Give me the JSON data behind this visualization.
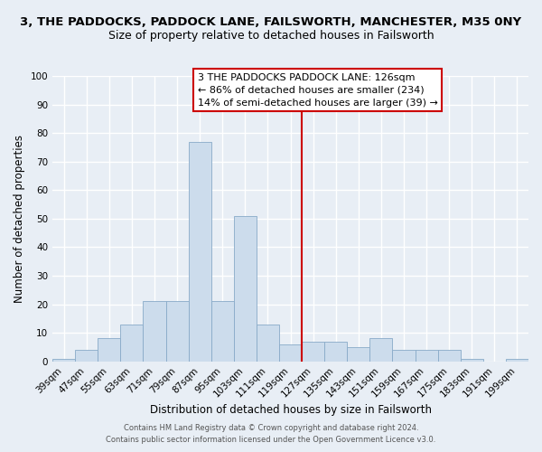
{
  "title_line1": "3, THE PADDOCKS, PADDOCK LANE, FAILSWORTH, MANCHESTER, M35 0NY",
  "title_line2": "Size of property relative to detached houses in Failsworth",
  "xlabel": "Distribution of detached houses by size in Failsworth",
  "ylabel": "Number of detached properties",
  "categories": [
    "39sqm",
    "47sqm",
    "55sqm",
    "63sqm",
    "71sqm",
    "79sqm",
    "87sqm",
    "95sqm",
    "103sqm",
    "111sqm",
    "119sqm",
    "127sqm",
    "135sqm",
    "143sqm",
    "151sqm",
    "159sqm",
    "167sqm",
    "175sqm",
    "183sqm",
    "191sqm",
    "199sqm"
  ],
  "values": [
    1,
    4,
    8,
    13,
    21,
    21,
    77,
    21,
    51,
    13,
    6,
    7,
    7,
    5,
    8,
    4,
    4,
    4,
    1,
    0,
    1
  ],
  "bar_color": "#ccdcec",
  "bar_edge_color": "#88aac8",
  "vline_x": 10.5,
  "vline_color": "#cc0000",
  "ylim": [
    0,
    100
  ],
  "yticks": [
    0,
    10,
    20,
    30,
    40,
    50,
    60,
    70,
    80,
    90,
    100
  ],
  "annotation_title": "3 THE PADDOCKS PADDOCK LANE: 126sqm",
  "annotation_line2": "← 86% of detached houses are smaller (234)",
  "annotation_line3": "14% of semi-detached houses are larger (39) →",
  "footer_line1": "Contains HM Land Registry data © Crown copyright and database right 2024.",
  "footer_line2": "Contains public sector information licensed under the Open Government Licence v3.0.",
  "bg_color": "#e8eef5",
  "grid_color": "#ffffff",
  "title1_fontsize": 9.5,
  "title2_fontsize": 9.0,
  "axis_label_fontsize": 8.5,
  "tick_fontsize": 7.5,
  "ann_fontsize": 8.0,
  "footer_fontsize": 6.0
}
